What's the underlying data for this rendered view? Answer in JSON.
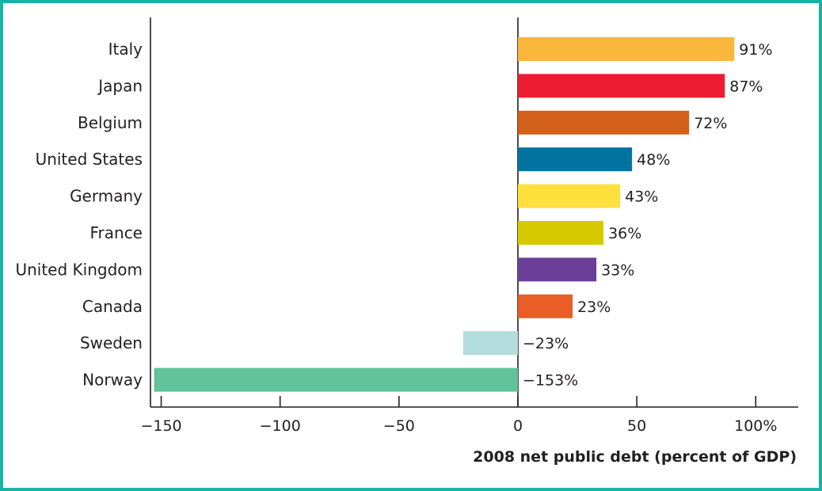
{
  "chart_data": {
    "type": "bar",
    "orientation": "horizontal",
    "title": "",
    "xlabel": "2008 net public debt (percent of GDP)",
    "ylabel": "",
    "xlim": [
      -155,
      115
    ],
    "xticks": [
      -150,
      -100,
      -50,
      0,
      50,
      100
    ],
    "xtick_labels": [
      "−150",
      "−100",
      "−50",
      "0",
      "50",
      "100%"
    ],
    "categories": [
      "Italy",
      "Japan",
      "Belgium",
      "United States",
      "Germany",
      "France",
      "United Kingdom",
      "Canada",
      "Sweden",
      "Norway"
    ],
    "values": [
      91,
      87,
      72,
      48,
      43,
      36,
      33,
      23,
      -23,
      -153
    ],
    "value_labels": [
      "91%",
      "87%",
      "72%",
      "48%",
      "43%",
      "36%",
      "33%",
      "23%",
      "−23%",
      "−153%"
    ],
    "colors": [
      "#fbb73c",
      "#ee1c31",
      "#d2601b",
      "#0073a0",
      "#ffdf3c",
      "#d7c900",
      "#6b3f99",
      "#e85e26",
      "#b2dddc",
      "#60c39b"
    ]
  },
  "frame_color": "#18b3a7"
}
